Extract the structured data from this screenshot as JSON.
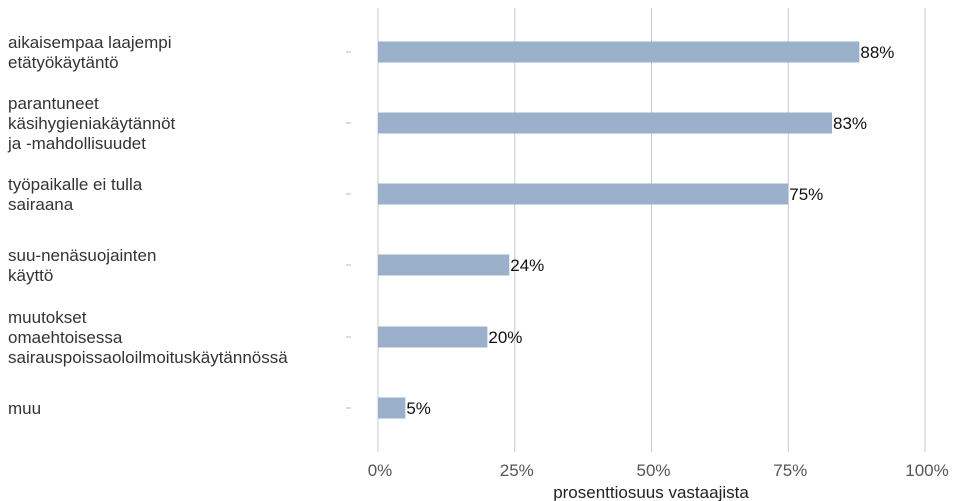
{
  "chart_data": {
    "type": "bar",
    "orientation": "horizontal",
    "categories": [
      [
        "aikaisempaa laajempi",
        "etätyökäytäntö"
      ],
      [
        "parantuneet",
        "käsihygieniakäytännöt",
        "ja -mahdollisuudet"
      ],
      [
        "työpaikalle ei tulla",
        "sairaana"
      ],
      [
        "suu-nenäsuojainten",
        "käyttö"
      ],
      [
        "muutokset",
        "omaehtoisessa",
        "sairauspoissaoloilmoituskäytännössä"
      ],
      [
        "muu"
      ]
    ],
    "values": [
      88,
      83,
      75,
      24,
      20,
      5
    ],
    "value_labels": [
      "88%",
      "83%",
      "75%",
      "24%",
      "20%",
      "5%"
    ],
    "xlim": [
      0,
      100
    ],
    "x_ticks": [
      0,
      25,
      50,
      75,
      100
    ],
    "x_tick_labels": [
      "0%",
      "25%",
      "50%",
      "75%",
      "100%"
    ],
    "xlabel": "prosenttiosuus vastaajista",
    "ylabel": "",
    "title": "",
    "grid": "vertical",
    "bar_color": "#9bb1cb",
    "grid_color": "#c8c8c8"
  }
}
